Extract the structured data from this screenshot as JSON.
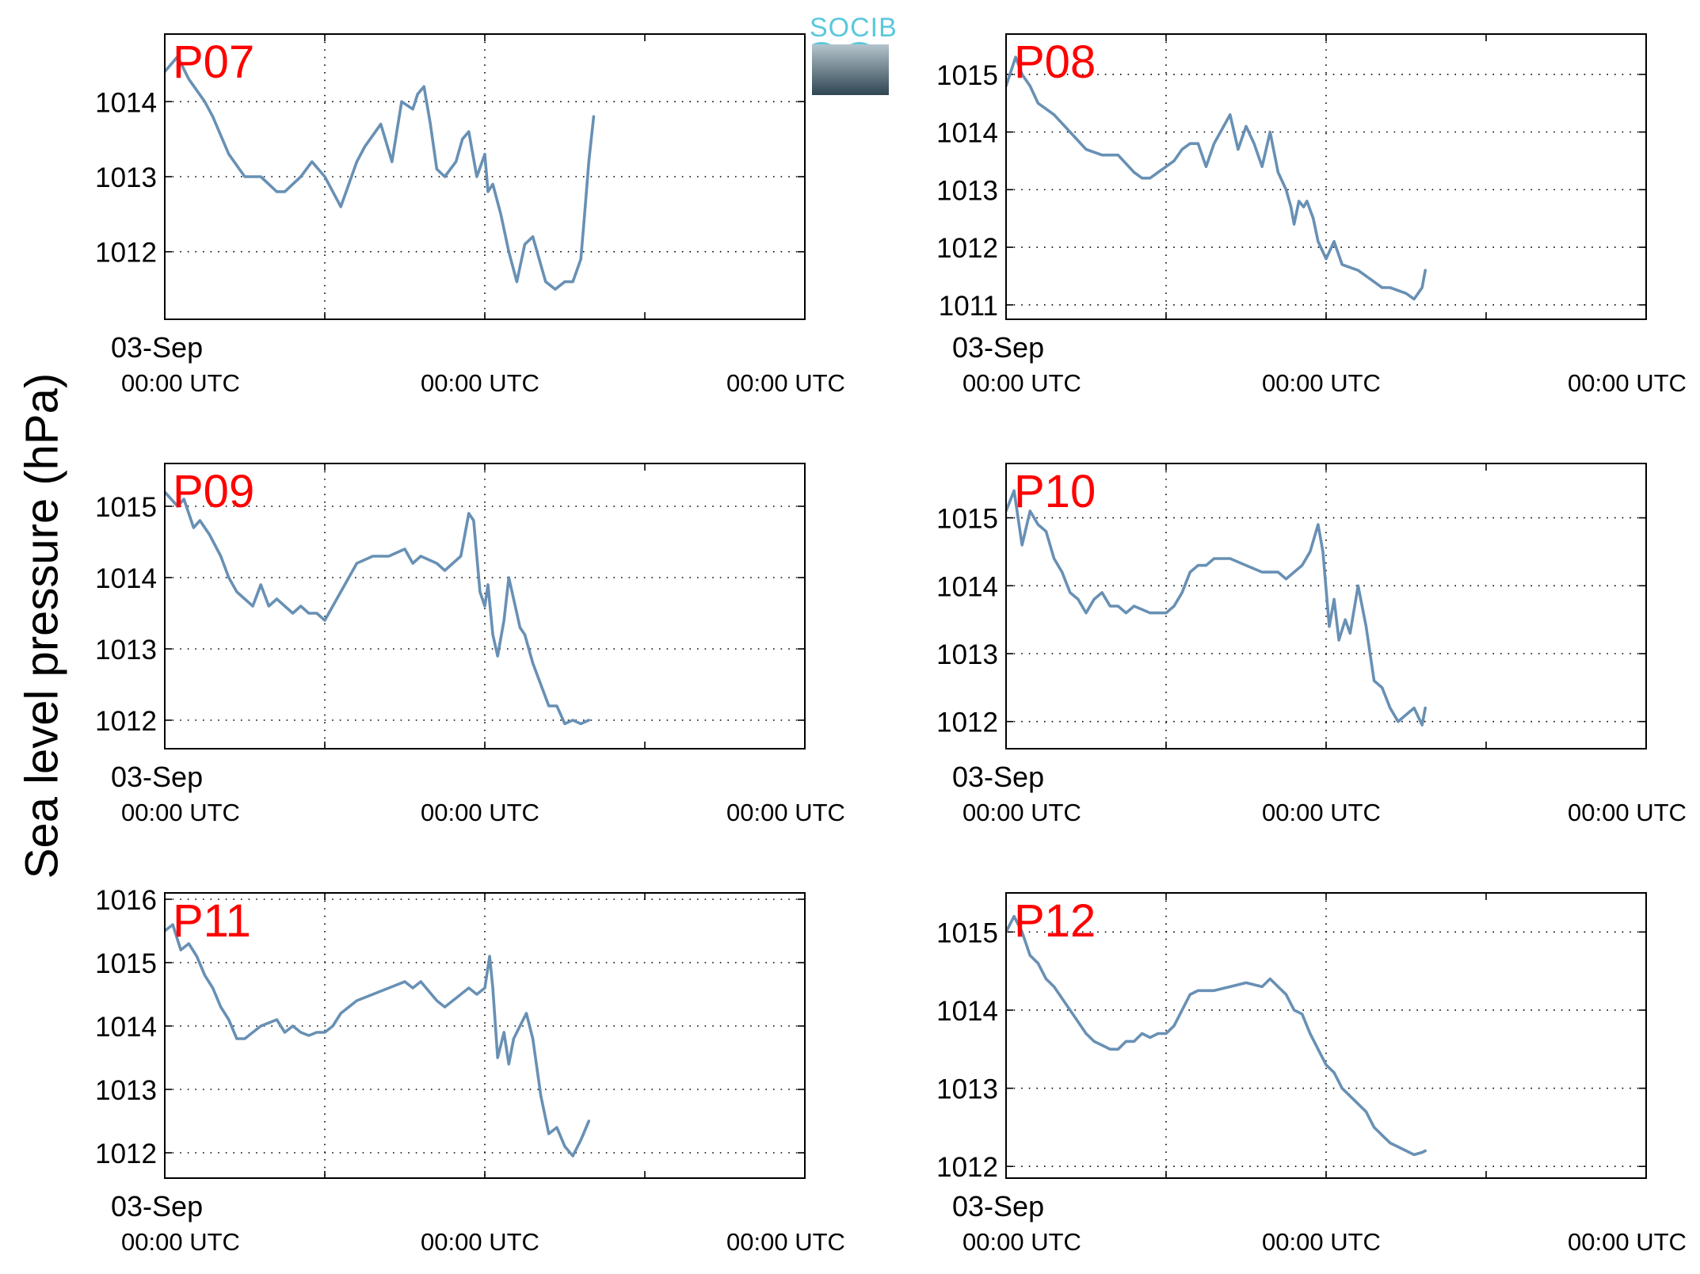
{
  "figure": {
    "ylabel": "Sea level pressure (hPa)",
    "logo_text": "SOCIB",
    "line_color": "#6890b4",
    "label_color": "#ff0000"
  },
  "chart_data": [
    {
      "type": "line",
      "title": "P07",
      "xlabel_top": "03-Sep",
      "xticks": [
        "00:00 UTC",
        "00:00 UTC",
        "00:00 UTC"
      ],
      "ylim": [
        1011.1,
        1014.9
      ],
      "yticks": [
        1012,
        1013,
        1014
      ],
      "x_range_days": [
        0,
        4
      ],
      "grid": true,
      "series": [
        {
          "x": [
            0.0,
            0.08,
            0.15,
            0.25,
            0.3,
            0.4,
            0.5,
            0.6,
            0.7,
            0.75,
            0.85,
            0.92,
            1.0,
            1.05,
            1.1,
            1.2,
            1.25,
            1.35,
            1.42,
            1.48,
            1.55,
            1.58,
            1.62,
            1.66,
            1.7,
            1.75,
            1.82,
            1.86,
            1.9,
            1.95,
            2.0,
            2.02,
            2.05,
            2.1,
            2.15,
            2.2,
            2.25,
            2.3,
            2.38,
            2.44,
            2.5,
            2.55,
            2.6,
            2.62,
            2.65,
            2.68
          ],
          "y": [
            1014.4,
            1014.6,
            1014.3,
            1014.0,
            1013.8,
            1013.3,
            1013.0,
            1013.0,
            1012.8,
            1012.8,
            1013.0,
            1013.2,
            1013.0,
            1012.8,
            1012.6,
            1013.2,
            1013.4,
            1013.7,
            1013.2,
            1014.0,
            1013.9,
            1014.1,
            1014.2,
            1013.7,
            1013.1,
            1013.0,
            1013.2,
            1013.5,
            1013.6,
            1013.0,
            1013.3,
            1012.8,
            1012.9,
            1012.5,
            1012.0,
            1011.6,
            1012.1,
            1012.2,
            1011.6,
            1011.5,
            1011.6,
            1011.6,
            1011.9,
            1012.4,
            1013.2,
            1013.8
          ]
        }
      ]
    },
    {
      "type": "line",
      "title": "P08",
      "xlabel_top": "03-Sep",
      "xticks": [
        "00:00 UTC",
        "00:00 UTC",
        "00:00 UTC"
      ],
      "ylim": [
        1010.75,
        1015.7
      ],
      "yticks": [
        1011,
        1012,
        1013,
        1014,
        1015
      ],
      "x_range_days": [
        0,
        4
      ],
      "grid": true,
      "series": [
        {
          "x": [
            0.0,
            0.06,
            0.1,
            0.15,
            0.2,
            0.25,
            0.3,
            0.4,
            0.5,
            0.6,
            0.7,
            0.8,
            0.85,
            0.9,
            0.95,
            1.0,
            1.05,
            1.1,
            1.15,
            1.2,
            1.25,
            1.3,
            1.4,
            1.45,
            1.5,
            1.55,
            1.6,
            1.65,
            1.7,
            1.75,
            1.78,
            1.8,
            1.83,
            1.86,
            1.88,
            1.92,
            1.95,
            2.0,
            2.05,
            2.1,
            2.2,
            2.3,
            2.35,
            2.4,
            2.5,
            2.55,
            2.6,
            2.62
          ],
          "y": [
            1014.8,
            1015.3,
            1015.0,
            1014.8,
            1014.5,
            1014.4,
            1014.3,
            1014.0,
            1013.7,
            1013.6,
            1013.6,
            1013.3,
            1013.2,
            1013.2,
            1013.3,
            1013.4,
            1013.5,
            1013.7,
            1013.8,
            1013.8,
            1013.4,
            1013.8,
            1014.3,
            1013.7,
            1014.1,
            1013.8,
            1013.4,
            1014.0,
            1013.3,
            1013.0,
            1012.7,
            1012.4,
            1012.8,
            1012.7,
            1012.8,
            1012.5,
            1012.1,
            1011.8,
            1012.1,
            1011.7,
            1011.6,
            1011.4,
            1011.3,
            1011.3,
            1011.2,
            1011.1,
            1011.3,
            1011.6
          ]
        }
      ]
    },
    {
      "type": "line",
      "title": "P09",
      "xlabel_top": "03-Sep",
      "xticks": [
        "00:00 UTC",
        "00:00 UTC",
        "00:00 UTC"
      ],
      "ylim": [
        1011.6,
        1015.6
      ],
      "yticks": [
        1012,
        1013,
        1014,
        1015
      ],
      "x_range_days": [
        0,
        4
      ],
      "grid": true,
      "series": [
        {
          "x": [
            0.0,
            0.08,
            0.12,
            0.18,
            0.22,
            0.28,
            0.35,
            0.4,
            0.45,
            0.5,
            0.55,
            0.6,
            0.65,
            0.7,
            0.75,
            0.8,
            0.85,
            0.9,
            0.95,
            1.0,
            1.05,
            1.1,
            1.2,
            1.3,
            1.4,
            1.5,
            1.55,
            1.6,
            1.7,
            1.75,
            1.8,
            1.85,
            1.9,
            1.93,
            1.97,
            2.0,
            2.02,
            2.05,
            2.08,
            2.12,
            2.15,
            2.18,
            2.22,
            2.25,
            2.3,
            2.35,
            2.4,
            2.45,
            2.5,
            2.55,
            2.6,
            2.65
          ],
          "y": [
            1015.2,
            1015.0,
            1015.1,
            1014.7,
            1014.8,
            1014.6,
            1014.3,
            1014.0,
            1013.8,
            1013.7,
            1013.6,
            1013.9,
            1013.6,
            1013.7,
            1013.6,
            1013.5,
            1013.6,
            1013.5,
            1013.5,
            1013.4,
            1013.6,
            1013.8,
            1014.2,
            1014.3,
            1014.3,
            1014.4,
            1014.2,
            1014.3,
            1014.2,
            1014.1,
            1014.2,
            1014.3,
            1014.9,
            1014.8,
            1013.8,
            1013.6,
            1013.9,
            1013.2,
            1012.9,
            1013.4,
            1014.0,
            1013.7,
            1013.3,
            1013.2,
            1012.8,
            1012.5,
            1012.2,
            1012.2,
            1011.95,
            1012.0,
            1011.95,
            1012.0
          ]
        }
      ]
    },
    {
      "type": "line",
      "title": "P10",
      "xlabel_top": "03-Sep",
      "xticks": [
        "00:00 UTC",
        "00:00 UTC",
        "00:00 UTC"
      ],
      "ylim": [
        1011.6,
        1015.8
      ],
      "yticks": [
        1012,
        1013,
        1014,
        1015
      ],
      "x_range_days": [
        0,
        4
      ],
      "grid": true,
      "series": [
        {
          "x": [
            0.0,
            0.05,
            0.1,
            0.15,
            0.2,
            0.25,
            0.3,
            0.35,
            0.4,
            0.45,
            0.5,
            0.55,
            0.6,
            0.65,
            0.7,
            0.75,
            0.8,
            0.9,
            1.0,
            1.05,
            1.1,
            1.15,
            1.2,
            1.25,
            1.3,
            1.4,
            1.5,
            1.6,
            1.7,
            1.75,
            1.8,
            1.85,
            1.9,
            1.95,
            1.98,
            2.02,
            2.05,
            2.08,
            2.12,
            2.15,
            2.2,
            2.25,
            2.3,
            2.35,
            2.4,
            2.45,
            2.5,
            2.55,
            2.6,
            2.62
          ],
          "y": [
            1015.1,
            1015.4,
            1014.6,
            1015.1,
            1014.9,
            1014.8,
            1014.4,
            1014.2,
            1013.9,
            1013.8,
            1013.6,
            1013.8,
            1013.9,
            1013.7,
            1013.7,
            1013.6,
            1013.7,
            1013.6,
            1013.6,
            1013.7,
            1013.9,
            1014.2,
            1014.3,
            1014.3,
            1014.4,
            1014.4,
            1014.3,
            1014.2,
            1014.2,
            1014.1,
            1014.2,
            1014.3,
            1014.5,
            1014.9,
            1014.5,
            1013.4,
            1013.8,
            1013.2,
            1013.5,
            1013.3,
            1014.0,
            1013.4,
            1012.6,
            1012.5,
            1012.2,
            1012.0,
            1012.1,
            1012.2,
            1011.95,
            1012.2
          ]
        }
      ]
    },
    {
      "type": "line",
      "title": "P11",
      "xlabel_top": "03-Sep",
      "xticks": [
        "00:00 UTC",
        "00:00 UTC",
        "00:00 UTC"
      ],
      "ylim": [
        1011.6,
        1016.1
      ],
      "yticks": [
        1012,
        1013,
        1014,
        1015,
        1016
      ],
      "x_range_days": [
        0,
        4
      ],
      "grid": true,
      "series": [
        {
          "x": [
            0.0,
            0.05,
            0.1,
            0.15,
            0.2,
            0.25,
            0.3,
            0.35,
            0.4,
            0.45,
            0.5,
            0.55,
            0.6,
            0.7,
            0.75,
            0.8,
            0.85,
            0.9,
            0.95,
            1.0,
            1.05,
            1.1,
            1.2,
            1.3,
            1.4,
            1.5,
            1.55,
            1.6,
            1.7,
            1.75,
            1.8,
            1.85,
            1.9,
            1.95,
            2.0,
            2.03,
            2.05,
            2.08,
            2.12,
            2.15,
            2.18,
            2.22,
            2.26,
            2.3,
            2.35,
            2.4,
            2.45,
            2.5,
            2.55,
            2.6,
            2.65
          ],
          "y": [
            1015.5,
            1015.6,
            1015.2,
            1015.3,
            1015.1,
            1014.8,
            1014.6,
            1014.3,
            1014.1,
            1013.8,
            1013.8,
            1013.9,
            1014.0,
            1014.1,
            1013.9,
            1014.0,
            1013.9,
            1013.85,
            1013.9,
            1013.9,
            1014.0,
            1014.2,
            1014.4,
            1014.5,
            1014.6,
            1014.7,
            1014.6,
            1014.7,
            1014.4,
            1014.3,
            1014.4,
            1014.5,
            1014.6,
            1014.5,
            1014.6,
            1015.1,
            1014.6,
            1013.5,
            1013.9,
            1013.4,
            1013.8,
            1014.0,
            1014.2,
            1013.8,
            1012.9,
            1012.3,
            1012.4,
            1012.1,
            1011.95,
            1012.2,
            1012.5
          ]
        }
      ]
    },
    {
      "type": "line",
      "title": "P12",
      "xlabel_top": "03-Sep",
      "xticks": [
        "00:00 UTC",
        "00:00 UTC",
        "00:00 UTC"
      ],
      "ylim": [
        1011.85,
        1015.5
      ],
      "yticks": [
        1012,
        1013,
        1014,
        1015
      ],
      "x_range_days": [
        0,
        4
      ],
      "grid": true,
      "series": [
        {
          "x": [
            0.0,
            0.05,
            0.1,
            0.15,
            0.2,
            0.25,
            0.3,
            0.4,
            0.5,
            0.55,
            0.6,
            0.65,
            0.7,
            0.75,
            0.8,
            0.85,
            0.9,
            0.95,
            1.0,
            1.05,
            1.1,
            1.15,
            1.2,
            1.3,
            1.4,
            1.5,
            1.6,
            1.65,
            1.7,
            1.75,
            1.8,
            1.85,
            1.9,
            1.95,
            2.0,
            2.05,
            2.1,
            2.15,
            2.2,
            2.25,
            2.3,
            2.35,
            2.4,
            2.45,
            2.5,
            2.55,
            2.6,
            2.62
          ],
          "y": [
            1015.0,
            1015.2,
            1015.0,
            1014.7,
            1014.6,
            1014.4,
            1014.3,
            1014.0,
            1013.7,
            1013.6,
            1013.55,
            1013.5,
            1013.5,
            1013.6,
            1013.6,
            1013.7,
            1013.65,
            1013.7,
            1013.7,
            1013.8,
            1014.0,
            1014.2,
            1014.25,
            1014.25,
            1014.3,
            1014.35,
            1014.3,
            1014.4,
            1014.3,
            1014.2,
            1014.0,
            1013.95,
            1013.7,
            1013.5,
            1013.3,
            1013.2,
            1013.0,
            1012.9,
            1012.8,
            1012.7,
            1012.5,
            1012.4,
            1012.3,
            1012.25,
            1012.2,
            1012.15,
            1012.18,
            1012.2
          ]
        }
      ]
    }
  ]
}
